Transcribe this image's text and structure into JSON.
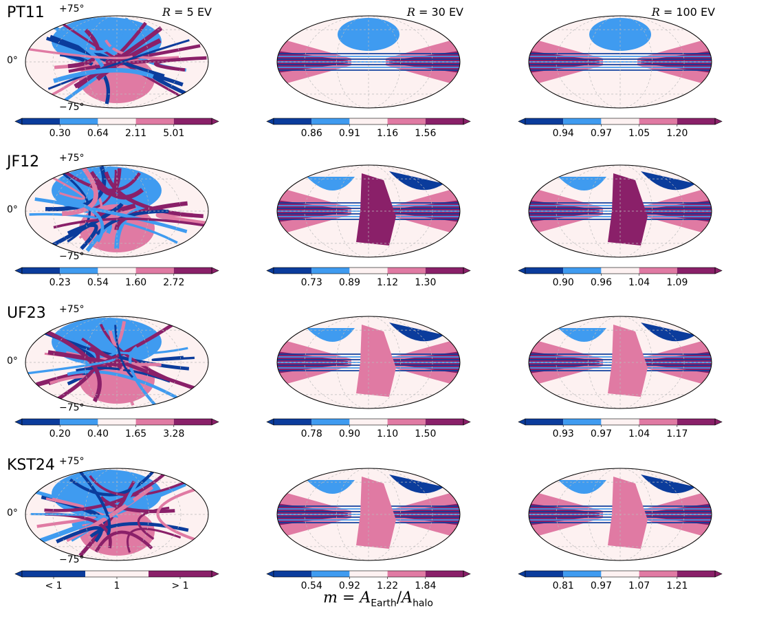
{
  "figure": {
    "xlabel_var": "m",
    "xlabel_eq": "=",
    "xlabel_num_sym": "A",
    "xlabel_num_sub": "Earth",
    "xlabel_slash": "/",
    "xlabel_den_sym": "A",
    "xlabel_den_sub": "halo"
  },
  "colors": {
    "dark_blue": "#0b3c9c",
    "light_blue": "#3f9bf0",
    "neutral": "#fdf1f1",
    "pink": "#e07aa3",
    "dark_purple": "#8a2069"
  },
  "chart_data": {
    "type": "heatmap",
    "projection": "mollweide",
    "latitude_ticks": [
      "+75°",
      "0°",
      "−75°"
    ],
    "columns": [
      {
        "title_var": "R",
        "title_rest": " = 5 EV"
      },
      {
        "title_var": "R",
        "title_rest": " = 30 EV"
      },
      {
        "title_var": "R",
        "title_rest": " = 100 EV"
      }
    ],
    "rows": [
      {
        "label": "PT11",
        "colorbars": [
          [
            "0.30",
            "0.64",
            "2.11",
            "5.01"
          ],
          [
            "0.86",
            "0.91",
            "1.16",
            "1.56"
          ],
          [
            "0.94",
            "0.97",
            "1.05",
            "1.20"
          ]
        ]
      },
      {
        "label": "JF12",
        "colorbars": [
          [
            "0.23",
            "0.54",
            "1.60",
            "2.72"
          ],
          [
            "0.73",
            "0.89",
            "1.12",
            "1.30"
          ],
          [
            "0.90",
            "0.96",
            "1.04",
            "1.09"
          ]
        ]
      },
      {
        "label": "UF23",
        "colorbars": [
          [
            "0.20",
            "0.40",
            "1.65",
            "3.28"
          ],
          [
            "0.78",
            "0.90",
            "1.10",
            "1.50"
          ],
          [
            "0.93",
            "0.97",
            "1.04",
            "1.17"
          ]
        ]
      },
      {
        "label": "KST24",
        "colorbars": [
          [
            "< 1",
            "1",
            "> 1"
          ],
          [
            "0.54",
            "0.92",
            "1.22",
            "1.84"
          ],
          [
            "0.81",
            "0.97",
            "1.07",
            "1.21"
          ]
        ]
      }
    ]
  }
}
